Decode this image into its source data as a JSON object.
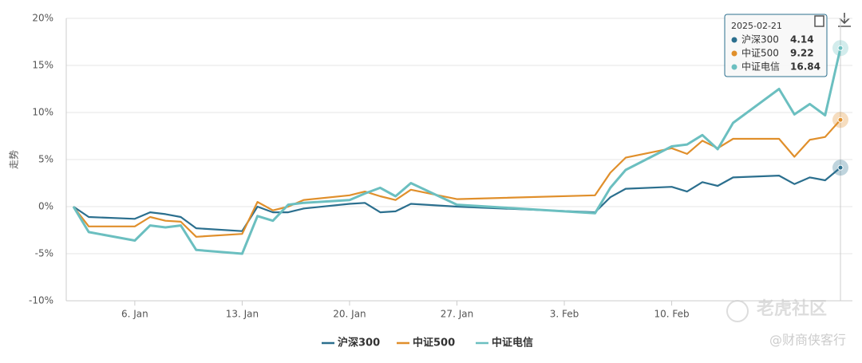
{
  "chart_data": {
    "type": "line",
    "y_label": "走势",
    "x": [
      "2025-01-02",
      "2025-01-03",
      "2025-01-06",
      "2025-01-07",
      "2025-01-08",
      "2025-01-09",
      "2025-01-10",
      "2025-01-13",
      "2025-01-14",
      "2025-01-15",
      "2025-01-16",
      "2025-01-17",
      "2025-01-20",
      "2025-01-21",
      "2025-01-22",
      "2025-01-23",
      "2025-01-24",
      "2025-01-27",
      "2025-02-05",
      "2025-02-06",
      "2025-02-07",
      "2025-02-10",
      "2025-02-11",
      "2025-02-12",
      "2025-02-13",
      "2025-02-14",
      "2025-02-17",
      "2025-02-18",
      "2025-02-19",
      "2025-02-20",
      "2025-02-21"
    ],
    "xlim": [
      "2025-01-02",
      "2025-02-21"
    ],
    "xticks": [
      {
        "value": "2025-01-06",
        "label": "6. Jan"
      },
      {
        "value": "2025-01-13",
        "label": "13. Jan"
      },
      {
        "value": "2025-01-20",
        "label": "20. Jan"
      },
      {
        "value": "2025-01-27",
        "label": "27. Jan"
      },
      {
        "value": "2025-02-03",
        "label": "3. Feb"
      },
      {
        "value": "2025-02-10",
        "label": "10. Feb"
      }
    ],
    "ylim": [
      -10,
      20
    ],
    "yticks": [
      {
        "value": -10,
        "label": "-10%"
      },
      {
        "value": -5,
        "label": "-5%"
      },
      {
        "value": 0,
        "label": "0%"
      },
      {
        "value": 5,
        "label": "5%"
      },
      {
        "value": 10,
        "label": "10%"
      },
      {
        "value": 15,
        "label": "15%"
      },
      {
        "value": 20,
        "label": "20%"
      }
    ],
    "grid": true,
    "series": [
      {
        "name": "沪深300",
        "color": "#2b6f8e",
        "values": [
          0,
          -1.1,
          -1.3,
          -0.6,
          -0.8,
          -1.1,
          -2.3,
          -2.6,
          0.0,
          -0.6,
          -0.6,
          -0.2,
          0.3,
          0.4,
          -0.6,
          -0.5,
          0.3,
          0.0,
          -0.6,
          1.0,
          1.9,
          2.1,
          1.6,
          2.6,
          2.2,
          3.1,
          3.3,
          2.4,
          3.1,
          2.8,
          4.14
        ]
      },
      {
        "name": "中证500",
        "color": "#e08f2b",
        "values": [
          0,
          -2.1,
          -2.1,
          -1.1,
          -1.5,
          -1.6,
          -3.2,
          -2.9,
          0.5,
          -0.4,
          0.0,
          0.7,
          1.2,
          1.6,
          1.1,
          0.7,
          1.8,
          0.8,
          1.2,
          3.6,
          5.2,
          6.2,
          5.6,
          7.0,
          6.2,
          7.2,
          7.2,
          5.3,
          7.1,
          7.4,
          9.22
        ]
      },
      {
        "name": "中证电信",
        "color": "#6bbfc0",
        "values": [
          0,
          -2.7,
          -3.6,
          -2.0,
          -2.2,
          -2.0,
          -4.6,
          -5.0,
          -1.0,
          -1.5,
          0.2,
          0.4,
          0.7,
          1.4,
          2.0,
          1.1,
          2.5,
          0.2,
          -0.7,
          2.0,
          3.9,
          6.4,
          6.6,
          7.6,
          6.1,
          8.9,
          12.5,
          9.8,
          10.9,
          9.7,
          16.84
        ]
      }
    ],
    "tooltip_index": 30,
    "watermark": [
      "老虎社区",
      "@财商侠客行"
    ]
  }
}
